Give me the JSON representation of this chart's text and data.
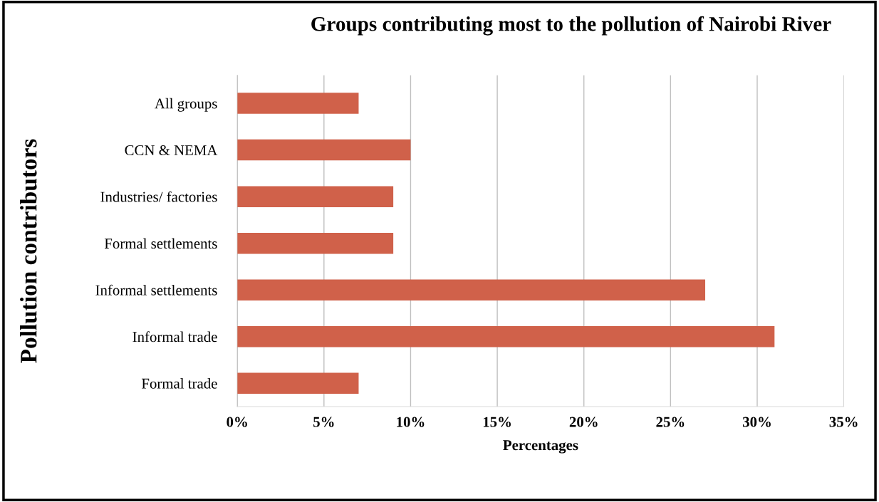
{
  "chart_data": {
    "type": "bar",
    "orientation": "horizontal",
    "title": "Groups contributing most to the pollution of Nairobi River",
    "xlabel": "Percentages",
    "ylabel": "Pollution contributors",
    "categories": [
      "All groups",
      "CCN & NEMA",
      "Industries/ factories",
      "Formal settlements",
      "Informal settlements",
      "Informal trade",
      "Formal trade"
    ],
    "values": [
      7,
      10,
      9,
      9,
      27,
      31,
      7
    ],
    "color": "#d0614a",
    "xlim": [
      0,
      35
    ],
    "xticks": [
      {
        "value": 0,
        "label": "0%"
      },
      {
        "value": 5,
        "label": "5%"
      },
      {
        "value": 10,
        "label": "10%"
      },
      {
        "value": 15,
        "label": "15%"
      },
      {
        "value": 20,
        "label": "20%"
      },
      {
        "value": 25,
        "label": "25%"
      },
      {
        "value": 30,
        "label": "30%"
      },
      {
        "value": 35,
        "label": "35%"
      }
    ],
    "grid": "x",
    "legend": false
  }
}
